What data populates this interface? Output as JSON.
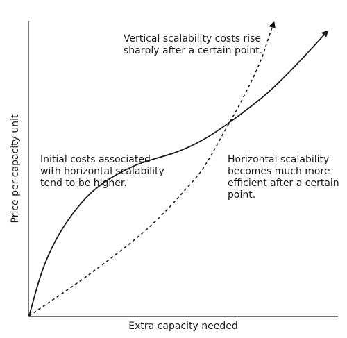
{
  "chart_data": {
    "type": "line",
    "title": "",
    "xlabel": "Extra capacity needed",
    "ylabel": "Price per capacity unit",
    "xlim": [
      0,
      100
    ],
    "ylim": [
      0,
      100
    ],
    "grid": false,
    "ticks": false,
    "series": [
      {
        "key": "horizontal",
        "style": "solid",
        "color": "#1a1a1a",
        "x": [
          0,
          5,
          12,
          22,
          35,
          50,
          60,
          70,
          80,
          90,
          100
        ],
        "y": [
          0,
          17,
          31,
          43,
          51,
          56,
          61,
          68,
          76,
          86,
          97
        ]
      },
      {
        "key": "vertical",
        "style": "dashed",
        "color": "#1a1a1a",
        "x": [
          0,
          20,
          40,
          55,
          60,
          65,
          70,
          75,
          78,
          80,
          82
        ],
        "y": [
          0,
          14,
          30,
          46,
          53,
          62,
          71,
          81,
          88,
          94,
          100
        ]
      }
    ],
    "annotations": [
      {
        "key": "vertical_note",
        "text": "Vertical scalability costs rise\nsharply after a certain point."
      },
      {
        "key": "initial_note",
        "text": "Initial costs associated\nwith horizontal scalability\ntend to be higher."
      },
      {
        "key": "horizontal_note",
        "text": "Horizontal scalability\nbecomes much more\nefficient after a certain\npoint."
      }
    ]
  }
}
